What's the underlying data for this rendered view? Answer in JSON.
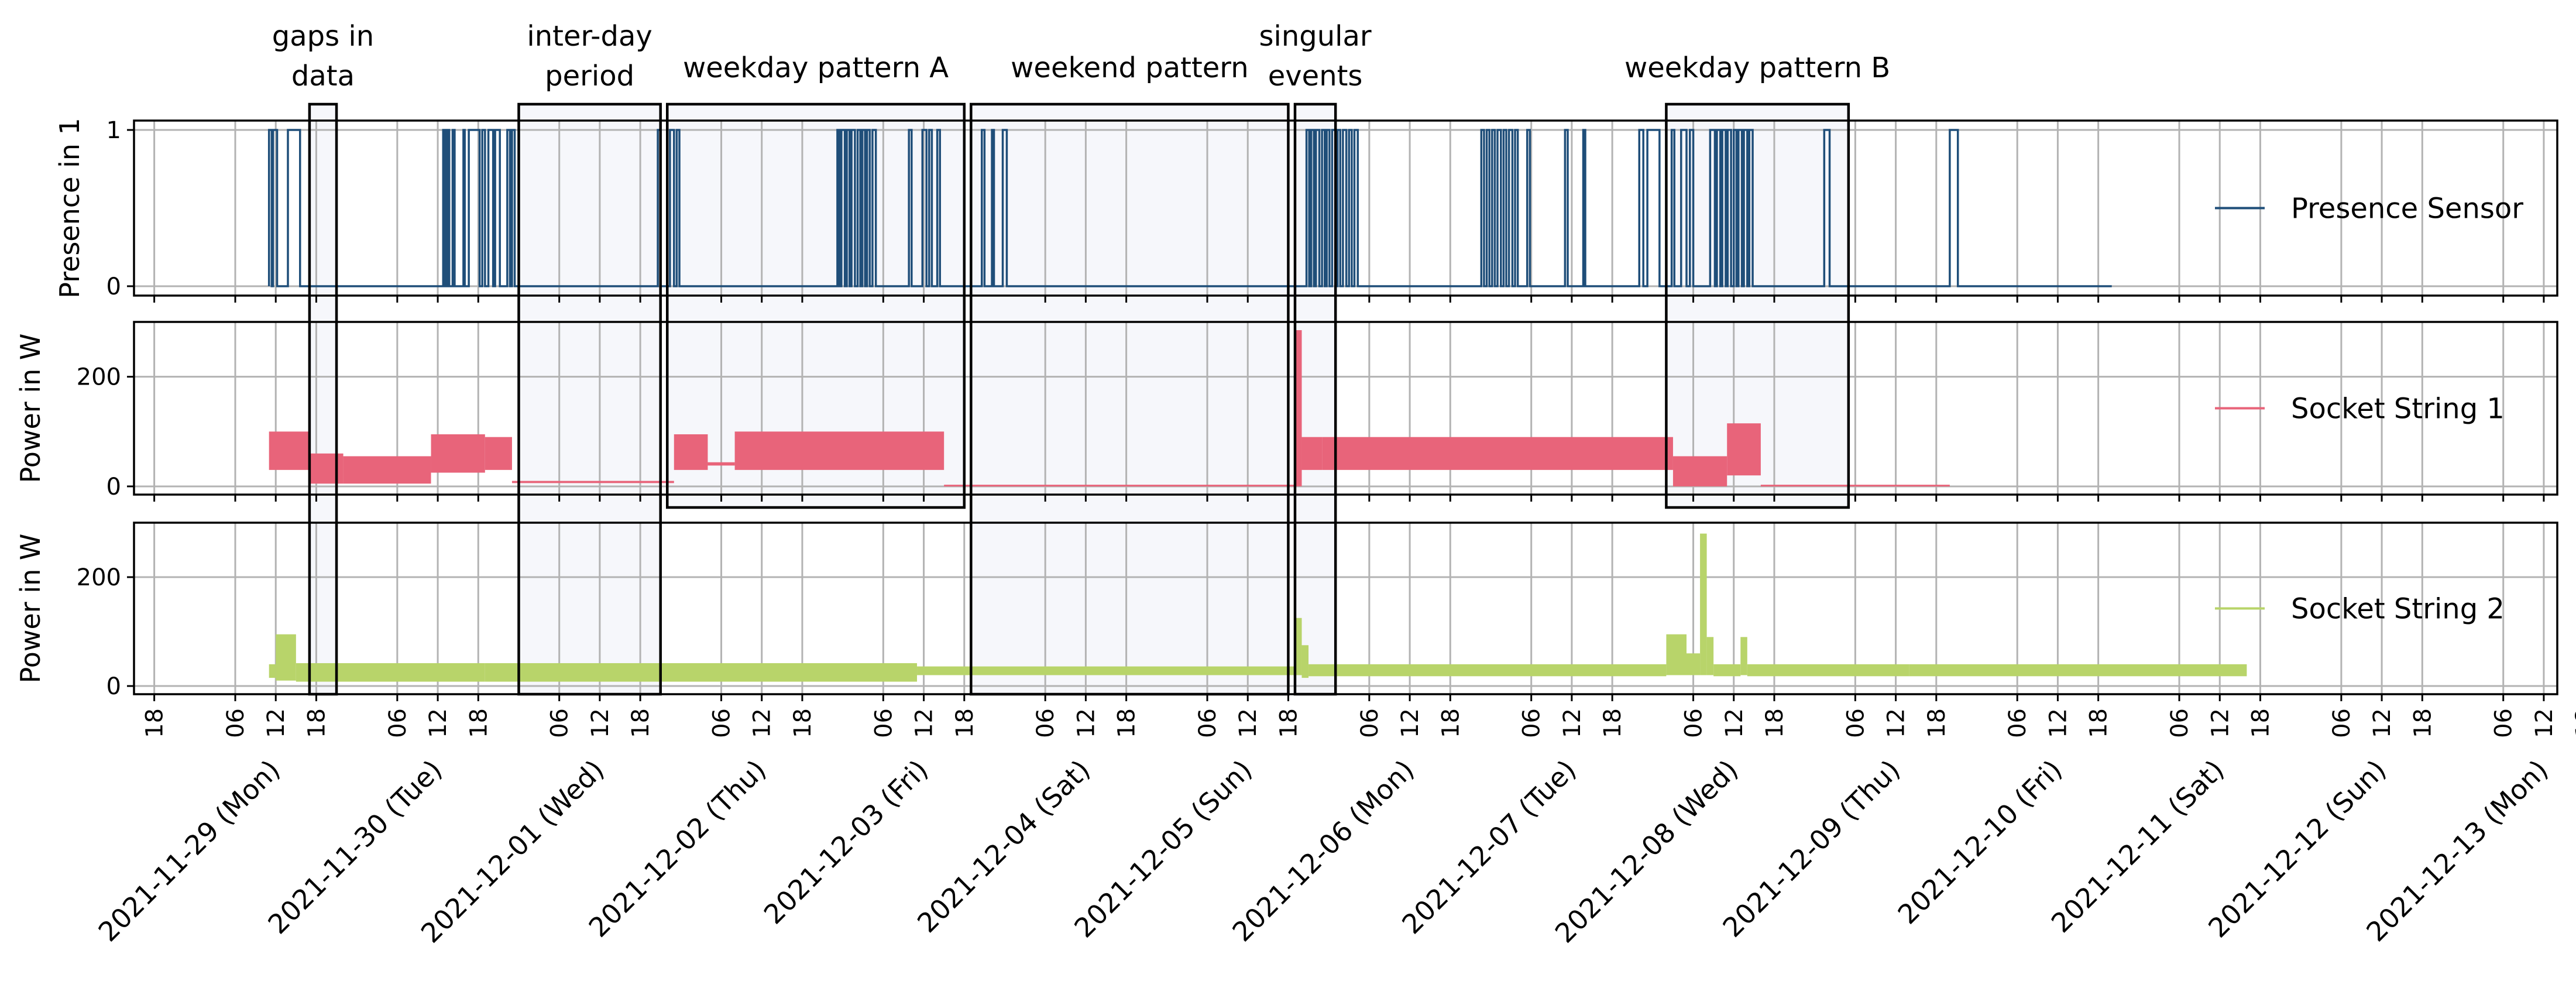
{
  "chart_data": {
    "type": "line",
    "x_range": [
      "2021-11-28 15:00",
      "2021-12-13 14:00"
    ],
    "date_labels": [
      "2021-11-29 (Mon)",
      "2021-11-30 (Tue)",
      "2021-12-01 (Wed)",
      "2021-12-02 (Thu)",
      "2021-12-03 (Fri)",
      "2021-12-04 (Sat)",
      "2021-12-05 (Sun)",
      "2021-12-06 (Mon)",
      "2021-12-07 (Tue)",
      "2021-12-08 (Wed)",
      "2021-12-09 (Thu)",
      "2021-12-10 (Fri)",
      "2021-12-11 (Sat)",
      "2021-12-12 (Sun)",
      "2021-12-13 (Mon)"
    ],
    "hour_tick_labels": [
      "18",
      "06",
      "12"
    ],
    "panels": [
      {
        "id": "presence",
        "ylabel": "Presence in 1",
        "ylim": [
          -0.06,
          1.06
        ],
        "yticks": [
          0,
          1
        ],
        "series": {
          "name": "Presence Sensor",
          "color": "#1f4e79",
          "kind": "binary",
          "start_hour": 20,
          "end_hour": 293,
          "on_intervals": [
            [
              20.0,
              20.4
            ],
            [
              20.6,
              21.2
            ],
            [
              22.8,
              24.6
            ],
            [
              45.8,
              46.1
            ],
            [
              46.4,
              46.7
            ],
            [
              47.2,
              47.5
            ],
            [
              48.8,
              49.0
            ],
            [
              49.6,
              51.2
            ],
            [
              51.6,
              52.0
            ],
            [
              52.5,
              53.2
            ],
            [
              53.5,
              54.2
            ],
            [
              55.3,
              55.7
            ],
            [
              56.0,
              56.4
            ],
            [
              77.6,
              78.0
            ],
            [
              79.4,
              80.0
            ],
            [
              80.4,
              80.8
            ],
            [
              104.2,
              104.5
            ],
            [
              104.8,
              105.3
            ],
            [
              105.6,
              106.0
            ],
            [
              106.3,
              106.8
            ],
            [
              107.2,
              107.6
            ],
            [
              107.9,
              108.3
            ],
            [
              108.6,
              109.0
            ],
            [
              109.4,
              109.9
            ],
            [
              114.8,
              115.2
            ],
            [
              116.8,
              117.4
            ],
            [
              117.8,
              118.2
            ],
            [
              119.0,
              119.4
            ],
            [
              125.6,
              126.0
            ],
            [
              127.1,
              127.4
            ],
            [
              128.7,
              129.3
            ],
            [
              173.7,
              174.1
            ],
            [
              174.4,
              174.8
            ],
            [
              175.1,
              175.6
            ],
            [
              176.0,
              176.4
            ],
            [
              176.7,
              177.1
            ],
            [
              177.5,
              178.0
            ],
            [
              178.3,
              178.7
            ],
            [
              179.1,
              179.6
            ],
            [
              180.0,
              180.4
            ],
            [
              180.8,
              181.3
            ],
            [
              199.6,
              200.0
            ],
            [
              200.4,
              200.8
            ],
            [
              201.2,
              201.6
            ],
            [
              202.0,
              202.5
            ],
            [
              202.9,
              203.3
            ],
            [
              203.7,
              204.2
            ],
            [
              204.6,
              205.0
            ],
            [
              206.4,
              206.8
            ],
            [
              212.0,
              212.4
            ],
            [
              214.7,
              215.0
            ],
            [
              223.0,
              223.6
            ],
            [
              224.2,
              226.0
            ],
            [
              227.8,
              228.2
            ],
            [
              229.2,
              230.0
            ],
            [
              230.5,
              231.0
            ],
            [
              233.5,
              234.2
            ],
            [
              234.5,
              235.0
            ],
            [
              235.3,
              235.8
            ],
            [
              236.1,
              236.6
            ],
            [
              237.0,
              237.4
            ],
            [
              237.7,
              238.2
            ],
            [
              238.5,
              239.0
            ],
            [
              239.3,
              239.8
            ],
            [
              250.4,
              251.2
            ],
            [
              269.0,
              270.2
            ]
          ]
        }
      },
      {
        "id": "socket1",
        "ylabel": "Power in W",
        "ylim": [
          -15,
          300
        ],
        "yticks": [
          0,
          200
        ],
        "series": {
          "name": "Socket String 1",
          "color": "#e8647a",
          "kind": "band",
          "segments": [
            {
              "from": 20,
              "to": 26,
              "low": 30,
              "high": 100
            },
            {
              "from": 26,
              "to": 31,
              "low": 5,
              "high": 60
            },
            {
              "from": 31,
              "to": 44,
              "low": 5,
              "high": 55
            },
            {
              "from": 44,
              "to": 52,
              "low": 25,
              "high": 95
            },
            {
              "from": 52,
              "to": 56,
              "low": 30,
              "high": 90
            },
            {
              "from": 56,
              "to": 80,
              "low": 6,
              "high": 10
            },
            {
              "from": 80,
              "to": 85,
              "low": 30,
              "high": 95
            },
            {
              "from": 85,
              "to": 89,
              "low": 38,
              "high": 44
            },
            {
              "from": 89,
              "to": 120,
              "low": 30,
              "high": 100
            },
            {
              "from": 120,
              "to": 172,
              "low": 0,
              "high": 3
            },
            {
              "from": 172,
              "to": 173,
              "low": 0,
              "high": 285
            },
            {
              "from": 173,
              "to": 176,
              "low": 30,
              "high": 90
            },
            {
              "from": 176,
              "to": 228,
              "low": 30,
              "high": 90
            },
            {
              "from": 228,
              "to": 236,
              "low": 0,
              "high": 55
            },
            {
              "from": 236,
              "to": 241,
              "low": 20,
              "high": 115
            },
            {
              "from": 241,
              "to": 269,
              "low": 0,
              "high": 3
            }
          ]
        }
      },
      {
        "id": "socket2",
        "ylabel": "Power in W",
        "ylim": [
          -15,
          300
        ],
        "yticks": [
          0,
          200
        ],
        "series": {
          "name": "Socket String 2",
          "color": "#b8d46a",
          "kind": "band",
          "segments": [
            {
              "from": 20,
              "to": 21,
              "low": 15,
              "high": 40
            },
            {
              "from": 21,
              "to": 24,
              "low": 10,
              "high": 95
            },
            {
              "from": 24,
              "to": 52,
              "low": 8,
              "high": 42
            },
            {
              "from": 52,
              "to": 116,
              "low": 8,
              "high": 42
            },
            {
              "from": 116,
              "to": 172,
              "low": 20,
              "high": 36
            },
            {
              "from": 172,
              "to": 173,
              "low": 20,
              "high": 125
            },
            {
              "from": 173,
              "to": 174,
              "low": 15,
              "high": 75
            },
            {
              "from": 174,
              "to": 227,
              "low": 18,
              "high": 40
            },
            {
              "from": 227,
              "to": 230,
              "low": 20,
              "high": 95
            },
            {
              "from": 230,
              "to": 232,
              "low": 20,
              "high": 60
            },
            {
              "from": 232,
              "to": 233,
              "low": 20,
              "high": 280
            },
            {
              "from": 233,
              "to": 234,
              "low": 20,
              "high": 90
            },
            {
              "from": 234,
              "to": 238,
              "low": 18,
              "high": 40
            },
            {
              "from": 238,
              "to": 239,
              "low": 20,
              "high": 90
            },
            {
              "from": 239,
              "to": 263,
              "low": 18,
              "high": 40
            },
            {
              "from": 263,
              "to": 313,
              "low": 18,
              "high": 40
            }
          ]
        }
      }
    ],
    "annotations": [
      {
        "label": [
          "gaps in",
          "data"
        ],
        "from": 26,
        "to": 30,
        "panels": "all"
      },
      {
        "label": [
          "inter-day",
          "period"
        ],
        "from": 57,
        "to": 78,
        "panels": "all"
      },
      {
        "label": [
          "weekday pattern A"
        ],
        "from": 79,
        "to": 123,
        "panels": "top2"
      },
      {
        "label": [
          "weekend pattern"
        ],
        "from": 124,
        "to": 171,
        "panels": "all"
      },
      {
        "label": [
          "singular",
          "events"
        ],
        "from": 172,
        "to": 178,
        "panels": "all"
      },
      {
        "label": [
          "weekday pattern B"
        ],
        "from": 227,
        "to": 254,
        "panels": "top2"
      }
    ]
  }
}
